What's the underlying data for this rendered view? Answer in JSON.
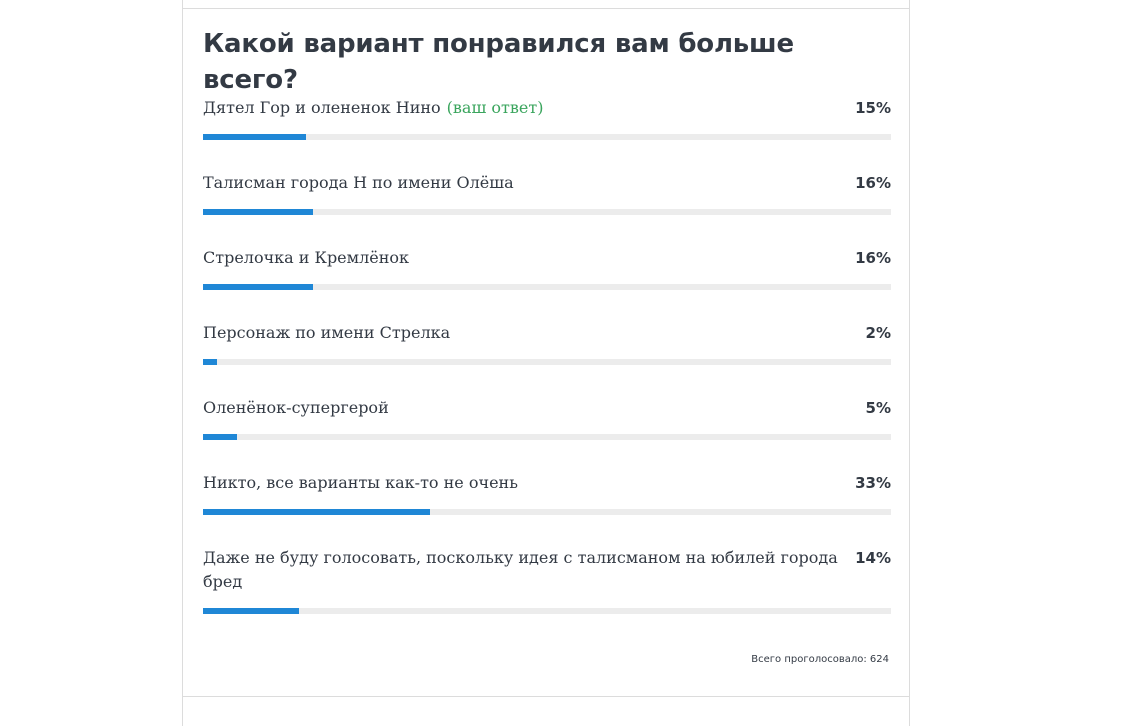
{
  "poll": {
    "question": "Какой вариант понравился вам больше всего?",
    "your_answer_label": "(ваш ответ)",
    "options": [
      {
        "label": "Дятел Гор и олененок Нино",
        "percent": "15%",
        "value": 15,
        "is_your_answer": true
      },
      {
        "label": "Талисман города Н по имени Олёша",
        "percent": "16%",
        "value": 16,
        "is_your_answer": false
      },
      {
        "label": "Стрелочка и Кремлёнок",
        "percent": "16%",
        "value": 16,
        "is_your_answer": false
      },
      {
        "label": "Персонаж по имени Стрелка",
        "percent": "2%",
        "value": 2,
        "is_your_answer": false
      },
      {
        "label": "Оленёнок-супергерой",
        "percent": "5%",
        "value": 5,
        "is_your_answer": false
      },
      {
        "label": "Никто, все варианты как-то не очень",
        "percent": "33%",
        "value": 33,
        "is_your_answer": false
      },
      {
        "label": "Даже не буду голосовать, поскольку идея с талисманом на юбилей города бред",
        "percent": "14%",
        "value": 14,
        "is_your_answer": false
      }
    ],
    "total_votes_text": "Всего проголосовало: 624"
  },
  "colors": {
    "bar_fill": "#1f87d6",
    "bar_track": "#ececec",
    "your_answer": "#3aa55d",
    "text": "#333a44"
  }
}
